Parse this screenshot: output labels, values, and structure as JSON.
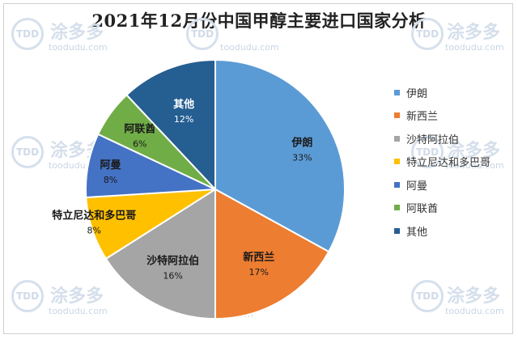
{
  "chart_data": {
    "type": "pie",
    "title": "2021年12月份中国甲醇主要进口国家分析",
    "categories": [
      "伊朗",
      "新西兰",
      "沙特阿拉伯",
      "特立尼达和多巴哥",
      "阿曼",
      "阿联酋",
      "其他"
    ],
    "values": [
      33,
      17,
      16,
      8,
      8,
      6,
      12
    ],
    "labels": [
      "33%",
      "17%",
      "16%",
      "8%",
      "8%",
      "6%",
      "12%"
    ],
    "colors": [
      "#5b9bd5",
      "#ed7d31",
      "#a5a5a5",
      "#ffc000",
      "#4472c4",
      "#70ad47",
      "#255e91"
    ],
    "legend_position": "right",
    "start_angle": "top, clockwise"
  },
  "watermark": {
    "brand": "涂多多",
    "logo": "TDD",
    "url": "toodudu.com"
  }
}
